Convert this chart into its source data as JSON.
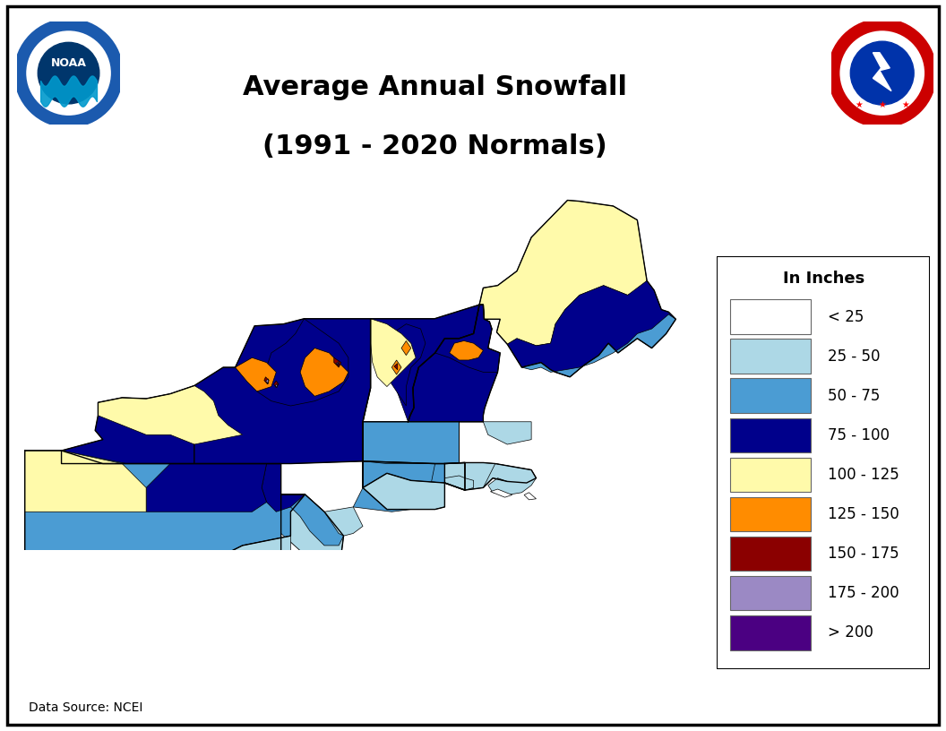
{
  "title_line1": "Average Annual Snowfall",
  "title_line2": "(1991 - 2020 Normals)",
  "data_source": "Data Source: NCEI",
  "legend_title": "In Inches",
  "legend_entries": [
    {
      "label": "< 25",
      "color": "#FFFFFF"
    },
    {
      "label": "25 - 50",
      "color": "#ADD8E6"
    },
    {
      "label": "50 - 75",
      "color": "#4B9CD3"
    },
    {
      "label": "75 - 100",
      "color": "#00008B"
    },
    {
      "label": "100 - 125",
      "color": "#FFFAAA"
    },
    {
      "label": "125 - 150",
      "color": "#FF8C00"
    },
    {
      "label": "150 - 175",
      "color": "#8B0000"
    },
    {
      "label": "175 - 200",
      "color": "#9B89C4"
    },
    {
      "label": "> 200",
      "color": "#4B0082"
    }
  ],
  "bg_color": "#FFFFFF",
  "title_fontsize": 22,
  "legend_fontsize": 12,
  "figsize": [
    10.56,
    8.16
  ],
  "dpi": 100,
  "map_extent": [
    -80.8,
    -66.3,
    40.2,
    47.8
  ],
  "noaa_colors": {
    "outer": "#1B5AAE",
    "ring_text": "#1B5AAE",
    "inner_top": "#00366C",
    "inner_wave": "#0099CC"
  },
  "nws_colors": {
    "outer": "#CC0000",
    "inner": "#0033AA"
  }
}
